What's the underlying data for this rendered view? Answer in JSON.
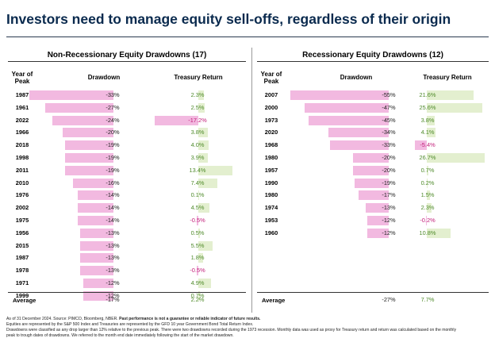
{
  "title": "Investors need to manage equity sell-offs, regardless of their origin",
  "colors": {
    "title": "#0a2a4e",
    "drawdown_bar": "#f2b9e0",
    "treasury_positive_bar": "#e3efcf",
    "positive_text": "#4e8a2a",
    "negative_text": "#c2207a"
  },
  "chart_data": [
    {
      "type": "table",
      "title": "Non-Recessionary Equity Drawdowns (17)",
      "columns": [
        "Year of Peak",
        "Drawdown",
        "Treasury Return"
      ],
      "rows": [
        {
          "year": "1987",
          "drawdown": -33,
          "drawdown_label": "-33%",
          "treasury": 2.3,
          "treasury_label": "2.3%"
        },
        {
          "year": "1961",
          "drawdown": -27,
          "drawdown_label": "-27%",
          "treasury": 2.5,
          "treasury_label": "2.5%"
        },
        {
          "year": "2022",
          "drawdown": -24,
          "drawdown_label": "-24%",
          "treasury": -17.2,
          "treasury_label": "-17.2%"
        },
        {
          "year": "1966",
          "drawdown": -20,
          "drawdown_label": "-20%",
          "treasury": 3.8,
          "treasury_label": "3.8%"
        },
        {
          "year": "2018",
          "drawdown": -19,
          "drawdown_label": "-19%",
          "treasury": 4.0,
          "treasury_label": "4.0%"
        },
        {
          "year": "1998",
          "drawdown": -19,
          "drawdown_label": "-19%",
          "treasury": 3.9,
          "treasury_label": "3.9%"
        },
        {
          "year": "2011",
          "drawdown": -19,
          "drawdown_label": "-19%",
          "treasury": 13.4,
          "treasury_label": "13.4%"
        },
        {
          "year": "2010",
          "drawdown": -16,
          "drawdown_label": "-16%",
          "treasury": 7.4,
          "treasury_label": "7.4%"
        },
        {
          "year": "1976",
          "drawdown": -14,
          "drawdown_label": "-14%",
          "treasury": 0.1,
          "treasury_label": "0.1%"
        },
        {
          "year": "2002",
          "drawdown": -14,
          "drawdown_label": "-14%",
          "treasury": 4.5,
          "treasury_label": "4.5%"
        },
        {
          "year": "1975",
          "drawdown": -14,
          "drawdown_label": "-14%",
          "treasury": -0.5,
          "treasury_label": "-0.5%"
        },
        {
          "year": "1956",
          "drawdown": -13,
          "drawdown_label": "-13%",
          "treasury": 0.5,
          "treasury_label": "0.5%"
        },
        {
          "year": "2015",
          "drawdown": -13,
          "drawdown_label": "-13%",
          "treasury": 5.5,
          "treasury_label": "5.5%"
        },
        {
          "year": "1987",
          "drawdown": -13,
          "drawdown_label": "-13%",
          "treasury": 1.8,
          "treasury_label": "1.8%"
        },
        {
          "year": "1978",
          "drawdown": -13,
          "drawdown_label": "-13%",
          "treasury": -0.5,
          "treasury_label": "-0.5%"
        },
        {
          "year": "1971",
          "drawdown": -12,
          "drawdown_label": "-12%",
          "treasury": 4.9,
          "treasury_label": "4.9%"
        },
        {
          "year": "1999",
          "drawdown": -12,
          "drawdown_label": "-12%",
          "treasury": 0.7,
          "treasury_label": "0.7%"
        }
      ],
      "average": {
        "label": "Average",
        "drawdown_label": "-17%",
        "treasury_label": "2.2%"
      }
    },
    {
      "type": "table",
      "title": "Recessionary Equity Drawdowns (12)",
      "columns": [
        "Year of Peak",
        "Drawdown",
        "Treasury Return"
      ],
      "rows": [
        {
          "year": "2007",
          "drawdown": -55,
          "drawdown_label": "-55%",
          "treasury": 21.6,
          "treasury_label": "21.6%"
        },
        {
          "year": "2000",
          "drawdown": -47,
          "drawdown_label": "-47%",
          "treasury": 25.6,
          "treasury_label": "25.6%"
        },
        {
          "year": "1973",
          "drawdown": -45,
          "drawdown_label": "-45%",
          "treasury": 3.8,
          "treasury_label": "3.8%"
        },
        {
          "year": "2020",
          "drawdown": -34,
          "drawdown_label": "-34%",
          "treasury": 4.1,
          "treasury_label": "4.1%"
        },
        {
          "year": "1968",
          "drawdown": -33,
          "drawdown_label": "-33%",
          "treasury": -5.4,
          "treasury_label": "-5.4%"
        },
        {
          "year": "1980",
          "drawdown": -20,
          "drawdown_label": "-20%",
          "treasury": 26.7,
          "treasury_label": "26.7%"
        },
        {
          "year": "1957",
          "drawdown": -20,
          "drawdown_label": "-20%",
          "treasury": 0.7,
          "treasury_label": "0.7%"
        },
        {
          "year": "1990",
          "drawdown": -19,
          "drawdown_label": "-19%",
          "treasury": 0.2,
          "treasury_label": "0.2%"
        },
        {
          "year": "1980",
          "drawdown": -17,
          "drawdown_label": "-17%",
          "treasury": 1.5,
          "treasury_label": "1.5%"
        },
        {
          "year": "1974",
          "drawdown": -13,
          "drawdown_label": "-13%",
          "treasury": 2.3,
          "treasury_label": "2.3%"
        },
        {
          "year": "1953",
          "drawdown": -12,
          "drawdown_label": "-12%",
          "treasury": -0.2,
          "treasury_label": "-0.2%"
        },
        {
          "year": "1960",
          "drawdown": -12,
          "drawdown_label": "-12%",
          "treasury": 10.8,
          "treasury_label": "10.8%"
        }
      ],
      "average": {
        "label": "Average",
        "drawdown_label": "-27%",
        "treasury_label": "7.7%"
      }
    }
  ],
  "footnotes": {
    "line1_prefix": "As of 31 December 2024. Source: PIMCO, Bloomberg, NBER. ",
    "line1_bold": "Past performance is not a guarantee or reliable indicator of future results.",
    "line2": "Equities are represented by the S&P 500 Index and Treasuries are represented by the GFD 10 year Government Bond Total Return Index.",
    "line3": "Drawdowns were classified as any drop larger than 12% relative to the previous peak. There were two drawdowns recorded during the 1973 recession. Monthly data was used as proxy for Treasury return and return was calculated based on the monthly",
    "line4": "peak to trough dates of drawdowns. We referred to the month end date immediately following the start of the market drawdown."
  }
}
